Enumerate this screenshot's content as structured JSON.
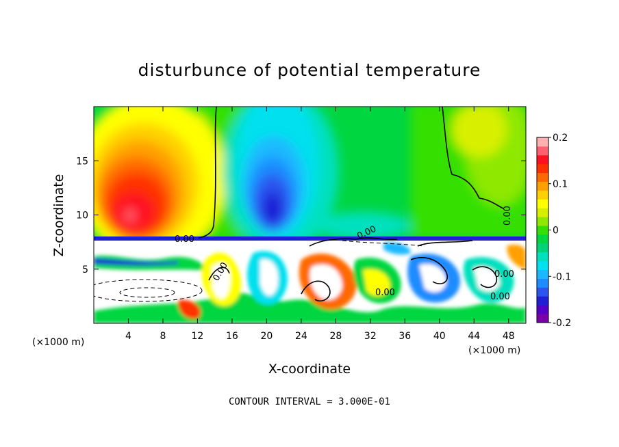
{
  "chart_data": {
    "type": "heatmap",
    "title": "disturbunce of potential temperature",
    "xlabel": "X-coordinate",
    "ylabel": "Z-coordinate",
    "x_unit": "(×1000 m)",
    "x_unit_right": "(×1000 m)",
    "xlim": [
      0,
      50
    ],
    "ylim": [
      0,
      20
    ],
    "x_ticks": [
      4,
      8,
      12,
      16,
      20,
      24,
      28,
      32,
      36,
      40,
      44,
      48
    ],
    "y_ticks": [
      5,
      10,
      15
    ],
    "colorbar": {
      "range": [
        -0.2,
        0.2
      ],
      "labels": [
        "0.2",
        "0.1",
        "0",
        "-0.1",
        "-0.2"
      ],
      "colors": [
        "#7a00a8",
        "#5500c8",
        "#1f1fd6",
        "#2b55ee",
        "#1d8cff",
        "#1bb8ff",
        "#00e0ee",
        "#00e0bf",
        "#00d27a",
        "#00d640",
        "#35e000",
        "#8ee800",
        "#d8f000",
        "#ffff00",
        "#ffd000",
        "#ffa000",
        "#ff6a00",
        "#ff3000",
        "#ff1020",
        "#ff6070",
        "#ffb0b0"
      ]
    },
    "contour_labels": [
      "0.00",
      "0.00",
      "0.00",
      "0.00",
      "0.00",
      "0.00",
      "0.00"
    ],
    "footnote": "CONTOUR INTERVAL = 3.000E-01",
    "features": [
      {
        "kind": "warm anomaly",
        "x": 5,
        "z": 11,
        "value": 0.18
      },
      {
        "kind": "cold anomaly",
        "x": 20,
        "z": 11,
        "value": -0.16
      },
      {
        "kind": "cold anomaly",
        "x": 20,
        "z": 17,
        "value": -0.07
      },
      {
        "kind": "warm anomaly",
        "x": 46,
        "z": 16,
        "value": 0.07
      }
    ]
  }
}
